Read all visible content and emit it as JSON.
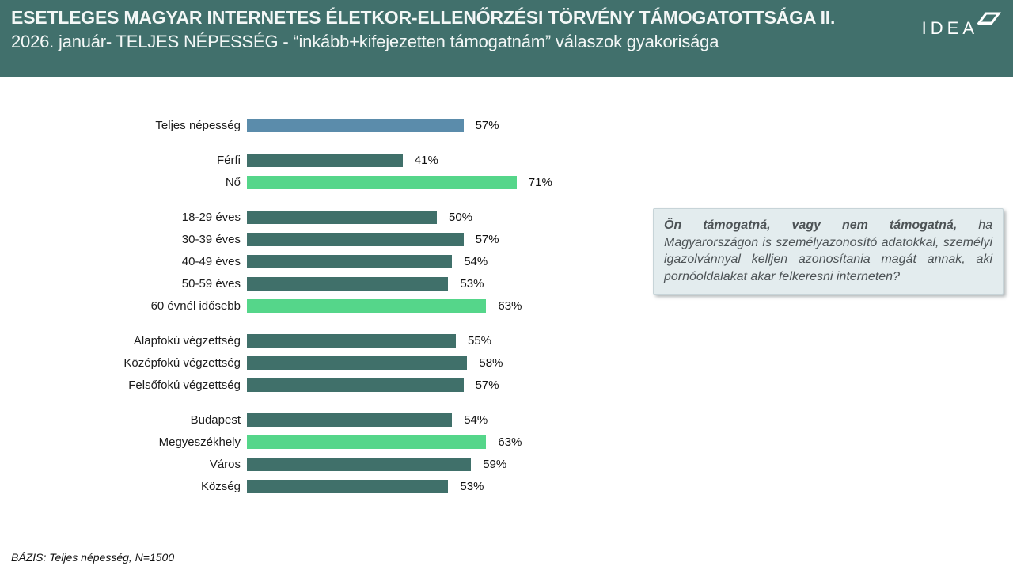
{
  "header": {
    "title": "ESETLEGES MAGYAR INTERNETES ÉLETKOR-ELLENŐRZÉSI TÖRVÉNY TÁMOGATOTTSÁGA II.",
    "subtitle": "2026. január- TELJES NÉPESSÉG - “inkább+kifejezetten támogatnám” válaszok gyakorisága",
    "logo_text": "IDEA"
  },
  "colors": {
    "header_bg": "#41706c",
    "bar_total": "#5b8cab",
    "bar_default": "#40706a",
    "bar_highlight": "#55d68a",
    "question_box_bg": "#e3ecee",
    "question_text": "#4d5356"
  },
  "chart_data": {
    "type": "bar",
    "orientation": "horizontal",
    "unit": "%",
    "xlim": [
      0,
      100
    ],
    "value_suffix": "%",
    "groups": [
      {
        "bars": [
          {
            "label": "Teljes népesség",
            "value": 57,
            "color": "bar_total"
          }
        ]
      },
      {
        "bars": [
          {
            "label": "Férfi",
            "value": 41,
            "color": "bar_default"
          },
          {
            "label": "Nő",
            "value": 71,
            "color": "bar_highlight"
          }
        ]
      },
      {
        "bars": [
          {
            "label": "18-29 éves",
            "value": 50,
            "color": "bar_default"
          },
          {
            "label": "30-39 éves",
            "value": 57,
            "color": "bar_default"
          },
          {
            "label": "40-49 éves",
            "value": 54,
            "color": "bar_default"
          },
          {
            "label": "50-59 éves",
            "value": 53,
            "color": "bar_default"
          },
          {
            "label": "60 évnél idősebb",
            "value": 63,
            "color": "bar_highlight"
          }
        ]
      },
      {
        "bars": [
          {
            "label": "Alapfokú végzettség",
            "value": 55,
            "color": "bar_default"
          },
          {
            "label": "Középfokú végzettség",
            "value": 58,
            "color": "bar_default"
          },
          {
            "label": "Felsőfokú végzettség",
            "value": 57,
            "color": "bar_default"
          }
        ]
      },
      {
        "bars": [
          {
            "label": "Budapest",
            "value": 54,
            "color": "bar_default"
          },
          {
            "label": "Megyeszékhely",
            "value": 63,
            "color": "bar_highlight"
          },
          {
            "label": "Város",
            "value": 59,
            "color": "bar_default"
          },
          {
            "label": "Község",
            "value": 53,
            "color": "bar_default"
          }
        ]
      }
    ]
  },
  "question": {
    "bold_part": "Ön támogatná, vagy nem támogatná,",
    "rest": " ha Magyarországon is személyazonosító adatokkal, személyi igazolvánnyal kelljen azonosítania magát annak, aki pornóoldalakat akar felkeresni interneten?"
  },
  "footer": {
    "note": "BÁZIS: Teljes népesség, N=1500"
  }
}
